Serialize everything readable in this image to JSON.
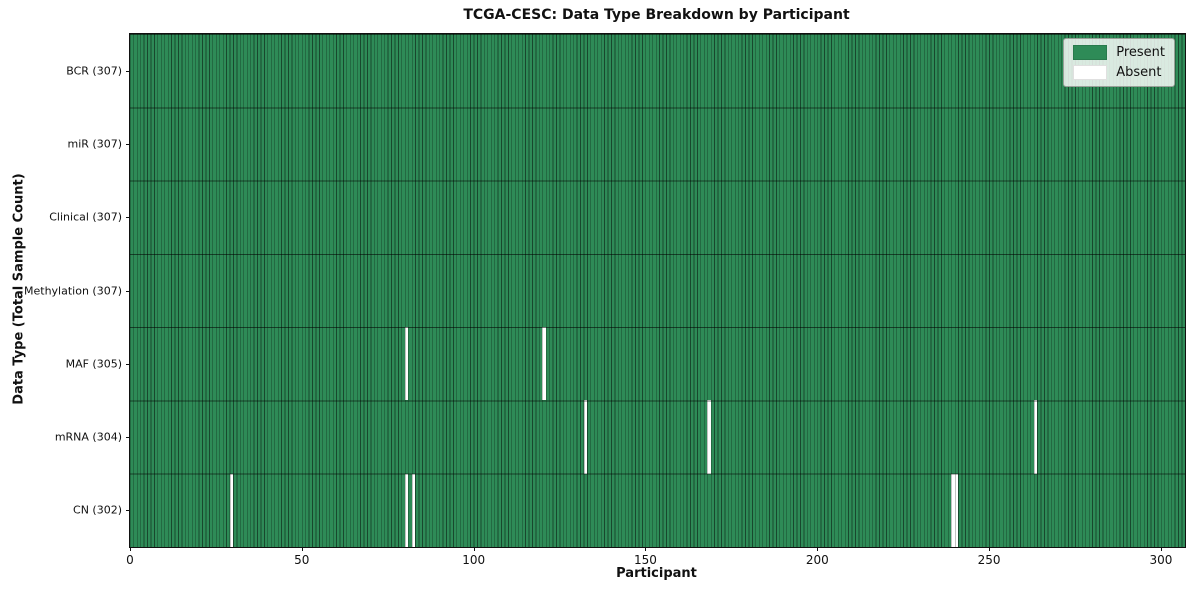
{
  "chart_data": {
    "type": "heatmap",
    "title": "TCGA-CESC: Data Type Breakdown by Participant",
    "xlabel": "Participant",
    "ylabel": "Data Type (Total Sample Count)",
    "x_ticks": [
      0,
      50,
      100,
      150,
      200,
      250,
      300
    ],
    "x_range": [
      0,
      307
    ],
    "n_participants": 307,
    "grid": "off",
    "legend_position": "upper right",
    "colors": {
      "present": "#2e8b57",
      "absent": "#ffffff",
      "cell_border": "#1e3d2c"
    },
    "legend": [
      {
        "label": "Present",
        "color": "#2e8b57"
      },
      {
        "label": "Absent",
        "color": "#ffffff"
      }
    ],
    "rows": [
      {
        "label": "BCR (307)",
        "name": "BCR",
        "total": 307,
        "absent_participants": []
      },
      {
        "label": "miR (307)",
        "name": "miR",
        "total": 307,
        "absent_participants": []
      },
      {
        "label": "Clinical (307)",
        "name": "Clinical",
        "total": 307,
        "absent_participants": []
      },
      {
        "label": "Methylation (307)",
        "name": "Methylation",
        "total": 307,
        "absent_participants": []
      },
      {
        "label": "MAF (305)",
        "name": "MAF",
        "total": 305,
        "absent_participants": [
          80,
          120
        ]
      },
      {
        "label": "mRNA (304)",
        "name": "mRNA",
        "total": 304,
        "absent_participants": [
          132,
          168,
          263
        ]
      },
      {
        "label": "CN (302)",
        "name": "CN",
        "total": 302,
        "absent_participants": [
          29,
          80,
          82,
          239,
          240
        ]
      }
    ]
  }
}
